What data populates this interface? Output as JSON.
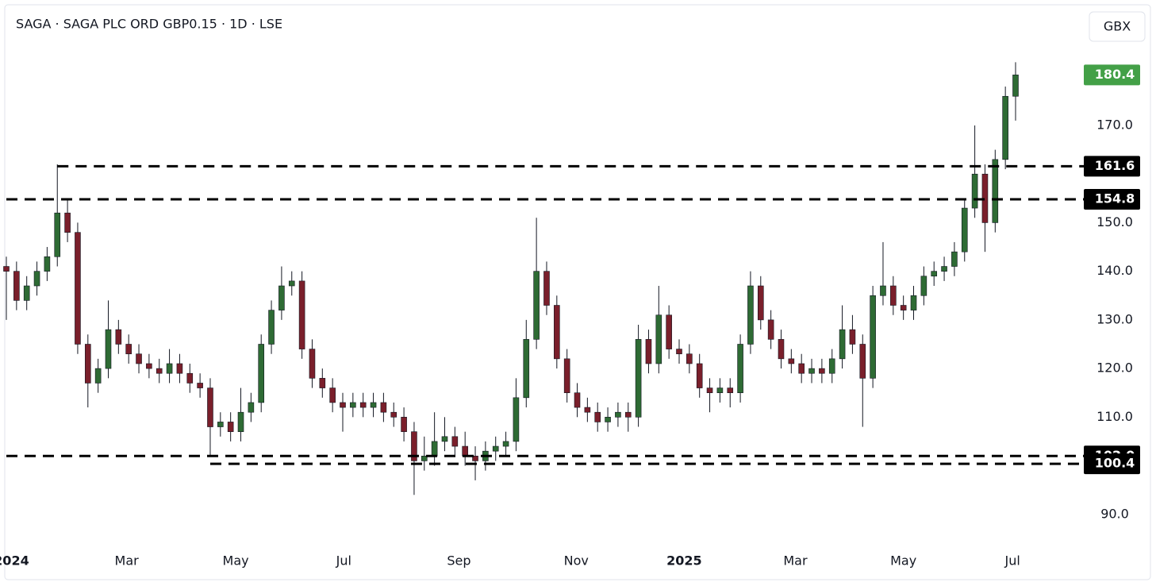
{
  "chart_data": {
    "type": "candlestick",
    "title": "SAGA · SAGA PLC ORD GBP0.15 · 1D · LSE",
    "currency": "GBX",
    "up_color": "#2e6b34",
    "down_color": "#7a1f2b",
    "last_price_color": "#43a047",
    "xlim": [
      0,
      99
    ],
    "xticks": [
      {
        "value": 0.5,
        "label": "2024"
      },
      {
        "value": 11.8,
        "label": "Mar"
      },
      {
        "value": 22.5,
        "label": "May"
      },
      {
        "value": 33.1,
        "label": "Jul"
      },
      {
        "value": 44.4,
        "label": "Sep"
      },
      {
        "value": 55.9,
        "label": "Nov"
      },
      {
        "value": 66.5,
        "label": "2025"
      },
      {
        "value": 77.4,
        "label": "Mar"
      },
      {
        "value": 88,
        "label": "May"
      },
      {
        "value": 98.7,
        "label": "Jul"
      }
    ],
    "ylim": [
      83.1,
      194.5
    ],
    "yticks": [
      {
        "value": 90,
        "label": "90.0"
      },
      {
        "value": 110,
        "label": "110.0"
      },
      {
        "value": 120,
        "label": "120.0"
      },
      {
        "value": 130,
        "label": "130.0"
      },
      {
        "value": 140,
        "label": "140.0"
      },
      {
        "value": 150,
        "label": "150.0"
      },
      {
        "value": 170,
        "label": "170.0"
      }
    ],
    "levels": [
      {
        "value": 161.6,
        "start": 5
      },
      {
        "value": 154.8,
        "start": 0
      },
      {
        "value": 102,
        "label": "102.0",
        "start": 0
      },
      {
        "value": 100.4,
        "start": 20
      }
    ],
    "open": [
      141,
      140,
      134,
      137,
      140,
      143,
      152,
      148,
      125,
      117,
      120,
      128,
      125,
      123,
      121,
      120,
      119,
      121,
      119,
      117,
      116,
      108,
      109,
      107,
      111,
      113,
      125,
      132,
      137,
      138,
      124,
      118,
      116,
      113,
      112,
      113,
      112,
      113,
      111,
      110,
      107,
      101,
      102,
      105,
      106,
      104,
      102,
      101,
      103,
      104,
      105,
      114,
      126,
      140,
      133,
      122,
      115,
      112,
      111,
      109,
      110,
      111,
      110,
      126,
      121,
      131,
      124,
      123,
      121,
      116,
      115,
      116,
      115,
      125,
      137,
      130,
      126,
      122,
      121,
      119,
      120,
      119,
      122,
      128,
      125,
      118,
      135,
      137,
      133,
      132,
      135,
      139,
      140,
      141,
      144,
      153,
      160,
      150,
      163,
      176
    ],
    "high": [
      143,
      142,
      139,
      142,
      145,
      162,
      155,
      150,
      127,
      122,
      134,
      130,
      127,
      125,
      123,
      122,
      124,
      123,
      121,
      119,
      118,
      111,
      111,
      116,
      115,
      127,
      134,
      141,
      140,
      140,
      126,
      120,
      118,
      115,
      115,
      115,
      115,
      115,
      113,
      112,
      109,
      106,
      111,
      110,
      108,
      107,
      104,
      105,
      106,
      107,
      118,
      130,
      151,
      142,
      135,
      124,
      117,
      114,
      113,
      112,
      113,
      113,
      129,
      128,
      137,
      133,
      126,
      125,
      123,
      118,
      118,
      118,
      127,
      140,
      139,
      132,
      128,
      124,
      123,
      122,
      122,
      124,
      133,
      131,
      127,
      137,
      146,
      139,
      135,
      137,
      141,
      142,
      143,
      146,
      155,
      170,
      162,
      165,
      178,
      183
    ],
    "low": [
      130,
      132,
      132,
      135,
      138,
      141,
      146,
      123,
      112,
      115,
      118,
      123,
      121,
      119,
      118,
      117,
      117,
      117,
      115,
      114,
      102,
      106,
      105,
      105,
      109,
      111,
      123,
      130,
      135,
      122,
      116,
      114,
      111,
      107,
      110,
      110,
      110,
      109,
      108,
      105,
      94,
      99,
      100,
      103,
      102,
      100,
      97,
      99,
      101,
      102,
      103,
      112,
      124,
      131,
      120,
      113,
      110,
      109,
      107,
      107,
      108,
      107,
      108,
      119,
      119,
      122,
      121,
      119,
      114,
      111,
      113,
      112,
      113,
      123,
      128,
      124,
      120,
      119,
      117,
      117,
      117,
      117,
      120,
      123,
      108,
      116,
      133,
      131,
      130,
      130,
      133,
      137,
      138,
      139,
      142,
      151,
      144,
      148,
      161,
      171
    ],
    "close": [
      140,
      134,
      137,
      140,
      143,
      152,
      148,
      125,
      117,
      120,
      128,
      125,
      123,
      121,
      120,
      119,
      121,
      119,
      117,
      116,
      108,
      109,
      107,
      111,
      113,
      125,
      132,
      137,
      138,
      124,
      118,
      116,
      113,
      112,
      113,
      112,
      113,
      111,
      110,
      107,
      101,
      102,
      105,
      106,
      104,
      102,
      101,
      103,
      104,
      105,
      114,
      126,
      140,
      133,
      122,
      115,
      112,
      111,
      109,
      110,
      111,
      110,
      126,
      121,
      131,
      124,
      123,
      121,
      116,
      115,
      116,
      115,
      125,
      137,
      130,
      126,
      122,
      121,
      119,
      120,
      119,
      122,
      128,
      125,
      118,
      135,
      137,
      133,
      132,
      135,
      139,
      140,
      141,
      144,
      153,
      160,
      150,
      163,
      176,
      180.4
    ]
  }
}
